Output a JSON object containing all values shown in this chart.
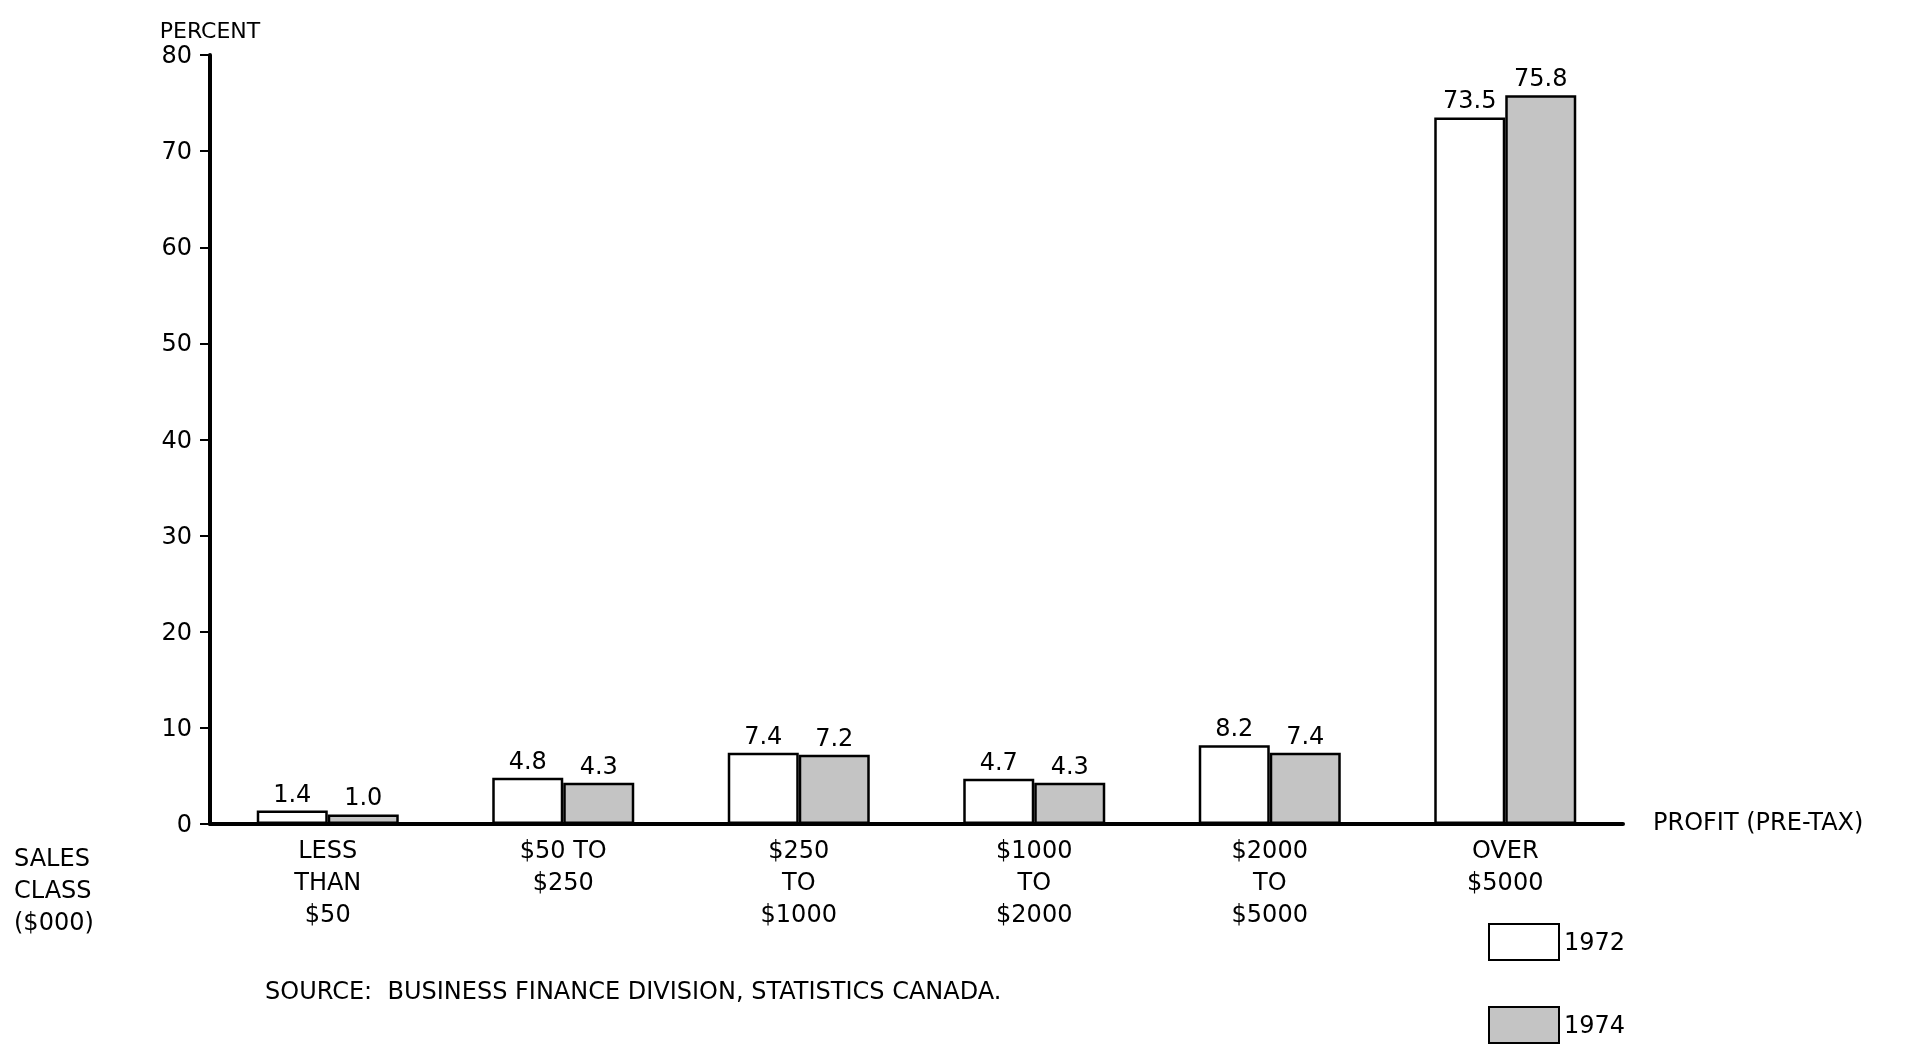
{
  "chart_data": {
    "type": "bar",
    "ylabel": "PERCENT",
    "xlabel": "PROFIT (PRE-TAX)",
    "categories": [
      "LESS\nTHAN\n$50",
      "$50 TO\n$250",
      "$250\nTO\n$1000",
      "$1000\nTO\n$2000",
      "$2000\nTO\n$5000",
      "OVER\n$5000"
    ],
    "series": [
      {
        "name": "1972",
        "color": "#ffffff",
        "values": [
          1.4,
          4.8,
          7.4,
          4.7,
          8.2,
          73.5
        ],
        "value_labels": [
          "1.4",
          "4.8",
          "7.4",
          "4.7",
          "8.2",
          "73.5"
        ]
      },
      {
        "name": "1974",
        "color": "#c4c4c4",
        "values": [
          1.0,
          4.3,
          7.2,
          4.3,
          7.4,
          75.8
        ],
        "value_labels": [
          "1.0",
          "4.3",
          "7.2",
          "4.3",
          "7.4",
          "75.8"
        ]
      }
    ],
    "ylim": [
      0,
      80
    ],
    "yticks": [
      0,
      10,
      20,
      30,
      40,
      50,
      60,
      70,
      80
    ],
    "grid": false,
    "legend": "bottom right",
    "annotations": [
      "SALES\nCLASS\n($000)",
      "SOURCE:  BUSINESS FINANCE DIVISION, STATISTICS CANADA."
    ]
  }
}
